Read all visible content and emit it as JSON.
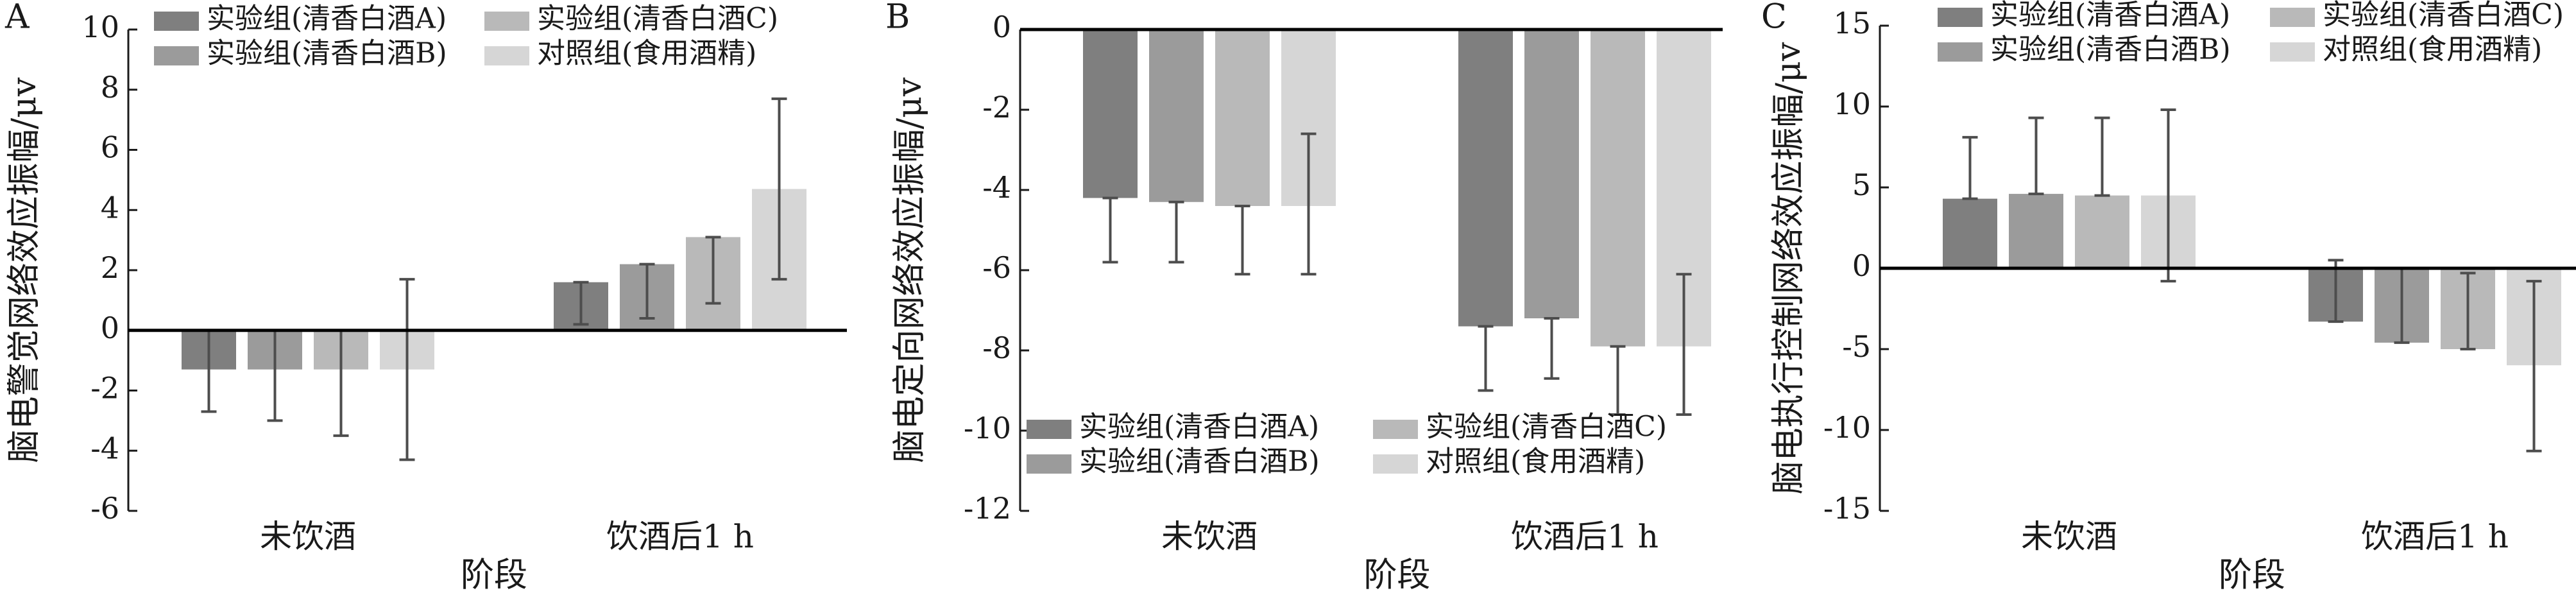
{
  "figure": {
    "xlabel": "阶段",
    "categories": [
      "未饮酒",
      "饮酒后1 h"
    ],
    "legend": [
      {
        "name": "实验组(清香白酒A)",
        "color": "#7f7f7f"
      },
      {
        "name": "实验组(清香白酒B)",
        "color": "#9b9b9b"
      },
      {
        "name": "实验组(清香白酒C)",
        "color": "#b9b9b9"
      },
      {
        "name": "对照组(食用酒精)",
        "color": "#d6d6d6"
      }
    ]
  },
  "chart_data": [
    {
      "type": "bar",
      "panel": "A",
      "ylabel": "脑电警觉网络效应振幅/μv",
      "xlabel": "阶段",
      "categories": [
        "未饮酒",
        "饮酒后1 h"
      ],
      "ylim": [
        -6,
        10
      ],
      "yticks": [
        -6,
        -4,
        -2,
        0,
        2,
        4,
        6,
        8,
        10
      ],
      "legend_position": "top-left",
      "series": [
        {
          "name": "实验组(清香白酒A)",
          "values": [
            -1.3,
            1.6
          ],
          "err_low": [
            -2.7,
            0.2
          ],
          "err_high": [
            0.0,
            1.6
          ]
        },
        {
          "name": "实验组(清香白酒B)",
          "values": [
            -1.3,
            2.2
          ],
          "err_low": [
            -3.0,
            0.4
          ],
          "err_high": [
            0.0,
            2.2
          ]
        },
        {
          "name": "实验组(清香白酒C)",
          "values": [
            -1.3,
            3.1
          ],
          "err_low": [
            -3.5,
            0.9
          ],
          "err_high": [
            0.0,
            3.1
          ]
        },
        {
          "name": "对照组(食用酒精)",
          "values": [
            -1.3,
            4.7
          ],
          "err_low": [
            -4.3,
            1.7
          ],
          "err_high": [
            1.7,
            7.7
          ]
        }
      ]
    },
    {
      "type": "bar",
      "panel": "B",
      "ylabel": "脑电定向网络效应振幅/μv",
      "xlabel": "阶段",
      "categories": [
        "未饮酒",
        "饮酒后1 h"
      ],
      "ylim": [
        -12,
        0
      ],
      "yticks": [
        -12,
        -10,
        -8,
        -6,
        -4,
        -2,
        0
      ],
      "legend_position": "bottom-left",
      "series": [
        {
          "name": "实验组(清香白酒A)",
          "values": [
            -4.2,
            -7.4
          ],
          "err_low": [
            -5.8,
            -9.0
          ],
          "err_high": [
            -4.2,
            -7.4
          ]
        },
        {
          "name": "实验组(清香白酒B)",
          "values": [
            -4.3,
            -7.2
          ],
          "err_low": [
            -5.8,
            -8.7
          ],
          "err_high": [
            -4.3,
            -7.2
          ]
        },
        {
          "name": "实验组(清香白酒C)",
          "values": [
            -4.4,
            -7.9
          ],
          "err_low": [
            -6.1,
            -9.6
          ],
          "err_high": [
            -4.4,
            -7.9
          ]
        },
        {
          "name": "对照组(食用酒精)",
          "values": [
            -4.4,
            -7.9
          ],
          "err_low": [
            -6.1,
            -9.6
          ],
          "err_high": [
            -2.6,
            -6.1
          ]
        }
      ]
    },
    {
      "type": "bar",
      "panel": "C",
      "ylabel": "脑电执行控制网络效应振幅/μv",
      "xlabel": "阶段",
      "categories": [
        "未饮酒",
        "饮酒后1 h"
      ],
      "ylim": [
        -15,
        15
      ],
      "yticks": [
        -15,
        -10,
        -5,
        0,
        5,
        10,
        15
      ],
      "legend_position": "top-left",
      "series": [
        {
          "name": "实验组(清香白酒A)",
          "values": [
            4.3,
            -3.3
          ],
          "err_low": [
            4.3,
            -3.3
          ],
          "err_high": [
            8.1,
            0.5
          ]
        },
        {
          "name": "实验组(清香白酒B)",
          "values": [
            4.6,
            -4.6
          ],
          "err_low": [
            4.6,
            -4.6
          ],
          "err_high": [
            9.3,
            0.0
          ]
        },
        {
          "name": "实验组(清香白酒C)",
          "values": [
            4.5,
            -5.0
          ],
          "err_low": [
            4.5,
            -5.0
          ],
          "err_high": [
            9.3,
            -0.3
          ]
        },
        {
          "name": "对照组(食用酒精)",
          "values": [
            4.5,
            -6.0
          ],
          "err_low": [
            -0.8,
            -11.3
          ],
          "err_high": [
            9.8,
            -0.8
          ]
        }
      ]
    }
  ]
}
